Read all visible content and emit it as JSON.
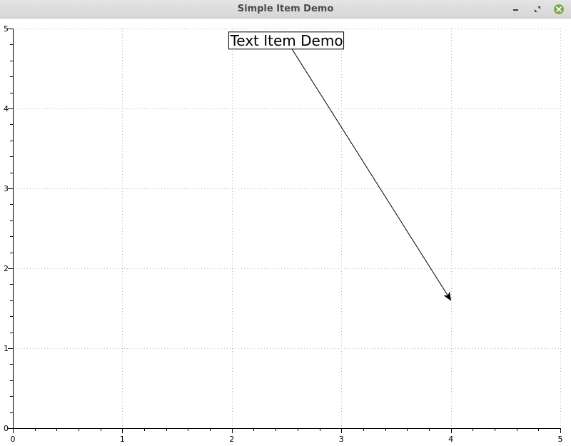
{
  "window": {
    "title": "Simple Item Demo",
    "controls": {
      "minimize": "minimize-icon",
      "maximize": "maximize-icon",
      "close": "close-icon"
    },
    "close_color": "#7eaa4d"
  },
  "chart_data": {
    "type": "line",
    "title": "",
    "xlabel": "",
    "ylabel": "",
    "xlim": [
      0,
      5
    ],
    "ylim": [
      0,
      5
    ],
    "xticks": [
      "0",
      "1",
      "2",
      "3",
      "4",
      "5"
    ],
    "yticks": [
      "0",
      "1",
      "2",
      "3",
      "4",
      "5"
    ],
    "grid": true,
    "series": [],
    "annotations": [
      {
        "kind": "text-arrow",
        "text": "Text Item Demo",
        "text_anchor": [
          2.5,
          4.85
        ],
        "arrow_from": [
          2.5,
          4.85
        ],
        "arrow_to": [
          4,
          1.6
        ]
      }
    ]
  }
}
